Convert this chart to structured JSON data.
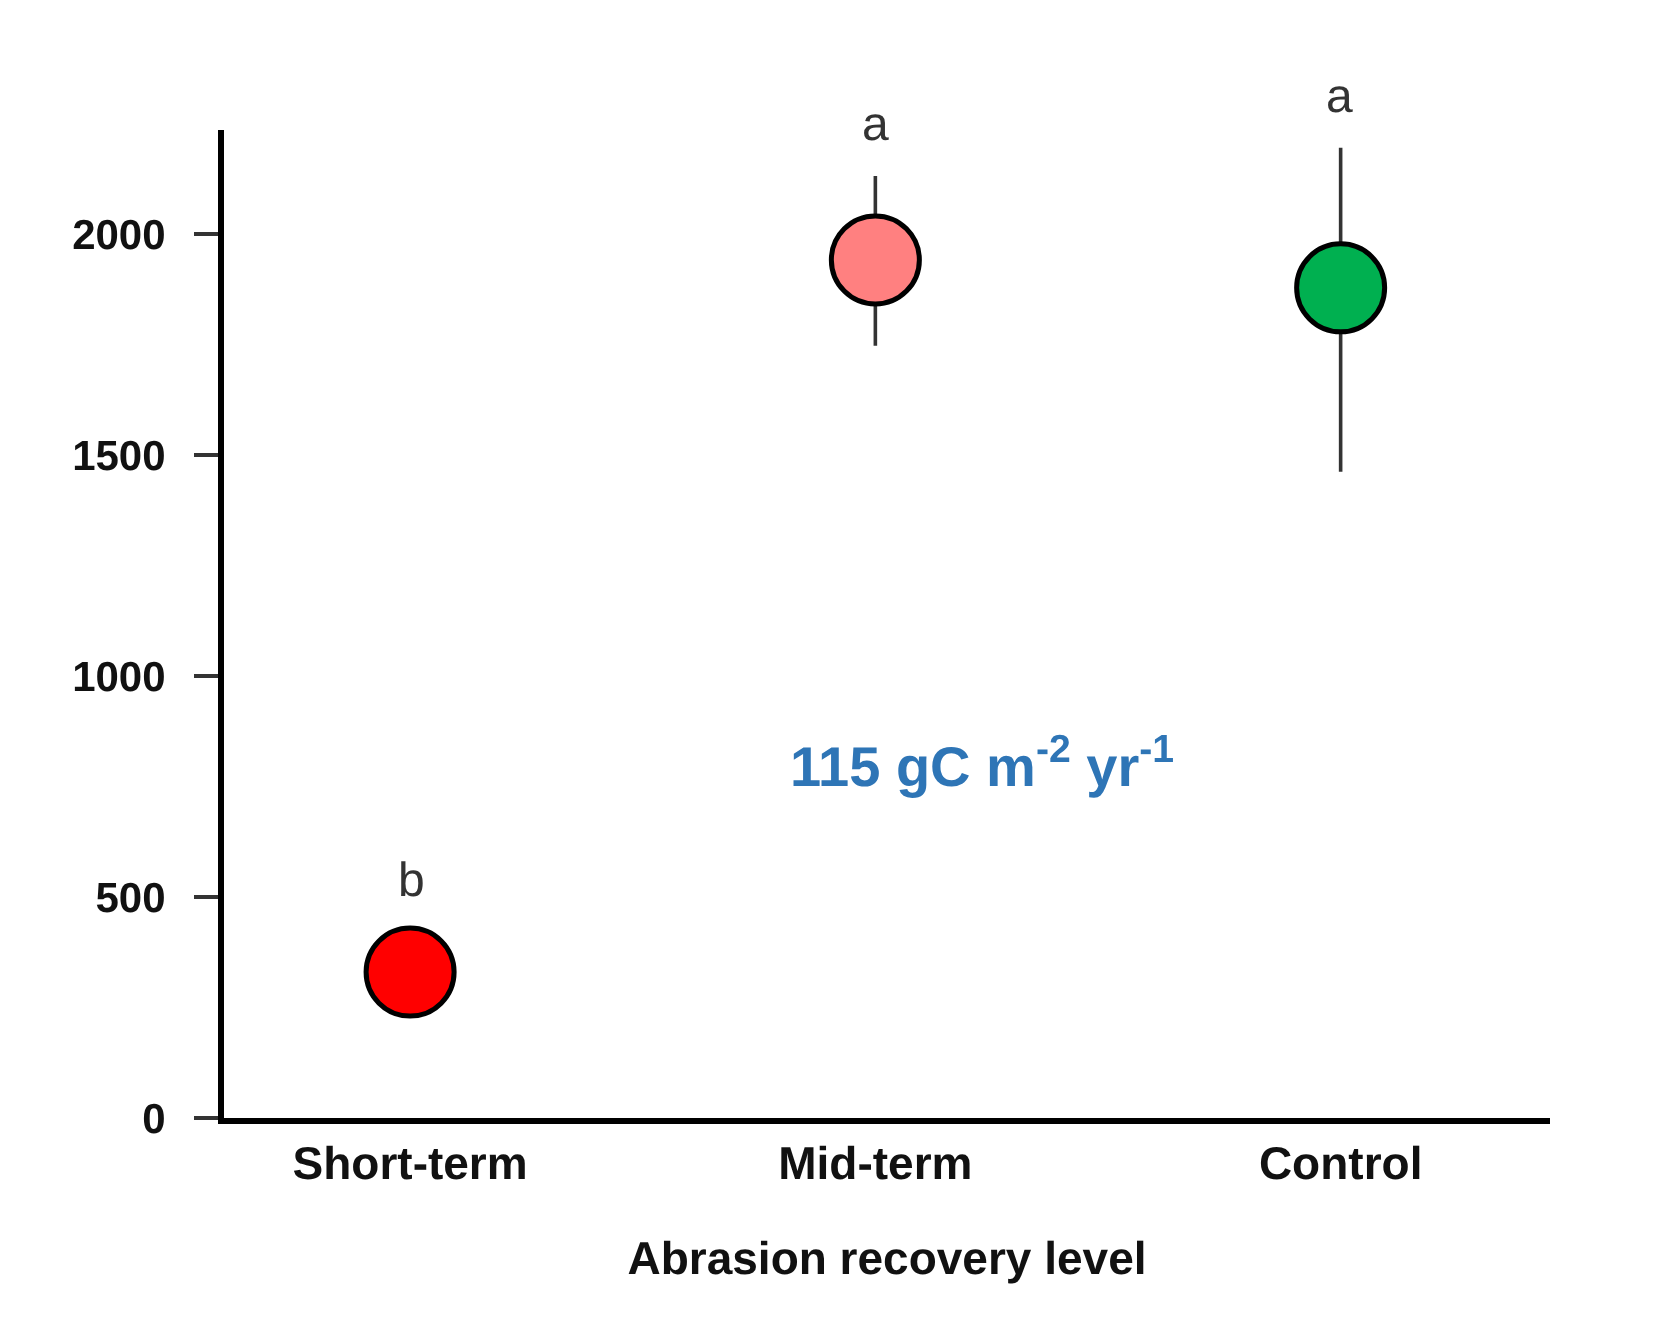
{
  "chart_data": {
    "type": "scatter",
    "xlabel": "Abrasion recovery level",
    "categories": [
      "Short-term",
      "Mid-term",
      "Control"
    ],
    "values": [
      330,
      1941,
      1878
    ],
    "colors": [
      "#ff0000",
      "#ff8080",
      "#00b050"
    ],
    "errors": [
      null,
      [
        1747,
        2131
      ],
      [
        1462,
        2195
      ]
    ],
    "ylim": [
      0,
      2235
    ],
    "yticks": [
      0,
      500,
      1000,
      1500,
      2000
    ],
    "marker": "circle",
    "annotations": [
      "b",
      "a",
      "a",
      "115 gC m$^{-2}$ yr$^{-1}$"
    ]
  }
}
